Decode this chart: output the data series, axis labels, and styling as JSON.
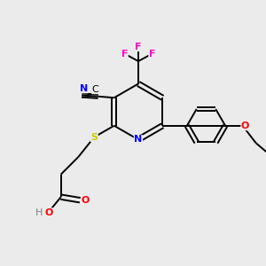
{
  "bg_color": "#ebebeb",
  "bond_color": "#000000",
  "N_color": "#0000ff",
  "O_color": "#ff0000",
  "S_color": "#cccc00",
  "F_color": "#ff00cc",
  "H_color": "#808080",
  "figsize": [
    3.0,
    3.0
  ],
  "dpi": 100,
  "xlim": [
    0,
    10
  ],
  "ylim": [
    0,
    10
  ]
}
